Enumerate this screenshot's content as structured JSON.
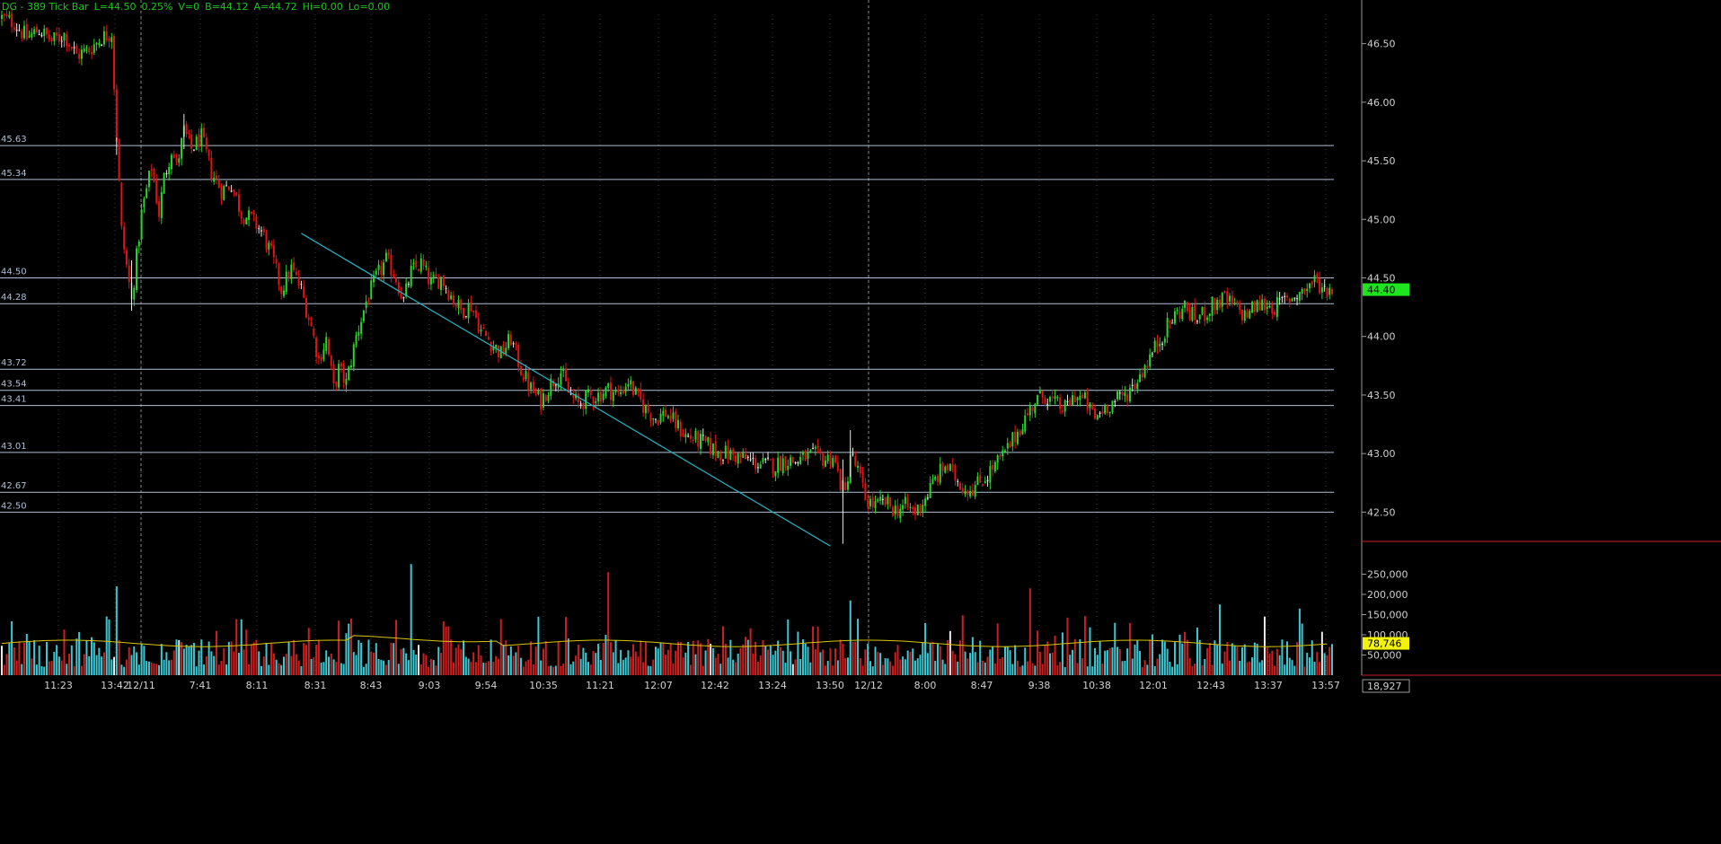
{
  "header": {
    "symbol_title": "DG - 389 Tick Bar",
    "last": "L=44.50",
    "change_pct": "0.25%",
    "volume": "V=0",
    "bid": "B=44.12",
    "ask": "A=44.72",
    "high": "Hi=0.00",
    "low": "Lo=0.00"
  },
  "colors": {
    "background": "#000000",
    "up_bar": "#2bd42b",
    "down_bar": "#e01414",
    "neutral_bar": "#e8e8e8",
    "level_line": "#aebfd6",
    "trend_line": "#1fb7c6",
    "volume_up": "#3cc8d2",
    "volume_down": "#cc1f1f",
    "volume_avg_line": "#d9c600",
    "grid": "#3a3a3a",
    "axis_text": "#d0d0d0",
    "price_marker": "#1ee61e",
    "volume_marker": "#f2f20a"
  },
  "chart_data": [
    {
      "type": "candlestick",
      "panel": "price",
      "title": "",
      "ylim": [
        42.25,
        46.75
      ],
      "y_ticks": [
        "46.50",
        "46.00",
        "45.50",
        "45.00",
        "44.50",
        "44.00",
        "43.50",
        "43.00",
        "42.50"
      ],
      "x_tick_labels": [
        "11:23",
        "13:42",
        "12/11",
        "7:41",
        "8:11",
        "8:31",
        "8:43",
        "9:03",
        "9:54",
        "10:35",
        "11:21",
        "12:07",
        "12:42",
        "13:24",
        "13:50",
        "12/12",
        "8:00",
        "8:47",
        "9:38",
        "10:38",
        "12:01",
        "12:43",
        "13:37",
        "13:57"
      ],
      "session_breaks": [
        "12/11",
        "12/12"
      ],
      "current_price_label": "44.40",
      "horizontal_levels": [
        {
          "label": "45.63",
          "value": 45.63
        },
        {
          "label": "45.34",
          "value": 45.34
        },
        {
          "label": "44.50",
          "value": 44.5
        },
        {
          "label": "44.28",
          "value": 44.28
        },
        {
          "label": "43.72",
          "value": 43.72
        },
        {
          "label": "43.54",
          "value": 43.54
        },
        {
          "label": "43.41",
          "value": 43.41
        },
        {
          "label": "43.01",
          "value": 43.01
        },
        {
          "label": "42.67",
          "value": 42.67
        },
        {
          "label": "42.50",
          "value": 42.5
        }
      ],
      "trend_line": {
        "from": {
          "bar_index": 120,
          "price": 44.88
        },
        "to": {
          "bar_index": 332,
          "price": 42.21
        }
      },
      "price_path": [
        [
          0,
          46.72
        ],
        [
          5,
          46.68
        ],
        [
          10,
          46.55
        ],
        [
          15,
          46.62
        ],
        [
          20,
          46.52
        ],
        [
          25,
          46.58
        ],
        [
          30,
          46.4
        ],
        [
          35,
          46.45
        ],
        [
          40,
          46.55
        ],
        [
          44,
          46.6
        ],
        [
          46,
          45.7
        ],
        [
          48,
          44.9
        ],
        [
          50,
          44.6
        ],
        [
          52,
          44.3
        ],
        [
          56,
          45.05
        ],
        [
          60,
          45.45
        ],
        [
          63,
          45.05
        ],
        [
          65,
          45.35
        ],
        [
          68,
          45.6
        ],
        [
          70,
          45.45
        ],
        [
          73,
          45.75
        ],
        [
          76,
          45.6
        ],
        [
          80,
          45.7
        ],
        [
          84,
          45.4
        ],
        [
          88,
          45.25
        ],
        [
          92,
          45.3
        ],
        [
          96,
          45.05
        ],
        [
          100,
          45.0
        ],
        [
          104,
          44.9
        ],
        [
          108,
          44.7
        ],
        [
          112,
          44.4
        ],
        [
          116,
          44.58
        ],
        [
          120,
          44.4
        ],
        [
          124,
          44.08
        ],
        [
          127,
          43.8
        ],
        [
          130,
          43.98
        ],
        [
          133,
          43.55
        ],
        [
          135,
          43.72
        ],
        [
          138,
          43.6
        ],
        [
          142,
          44.0
        ],
        [
          146,
          44.3
        ],
        [
          150,
          44.5
        ],
        [
          154,
          44.65
        ],
        [
          158,
          44.5
        ],
        [
          161,
          44.3
        ],
        [
          164,
          44.55
        ],
        [
          168,
          44.62
        ],
        [
          172,
          44.45
        ],
        [
          176,
          44.5
        ],
        [
          180,
          44.35
        ],
        [
          184,
          44.22
        ],
        [
          188,
          44.27
        ],
        [
          192,
          44.05
        ],
        [
          196,
          43.95
        ],
        [
          200,
          43.85
        ],
        [
          204,
          43.98
        ],
        [
          208,
          43.72
        ],
        [
          212,
          43.55
        ],
        [
          216,
          43.45
        ],
        [
          220,
          43.6
        ],
        [
          224,
          43.7
        ],
        [
          227,
          43.52
        ],
        [
          231,
          43.42
        ],
        [
          235,
          43.48
        ],
        [
          239,
          43.5
        ],
        [
          243,
          43.55
        ],
        [
          247,
          43.5
        ],
        [
          251,
          43.62
        ],
        [
          254,
          43.5
        ],
        [
          258,
          43.38
        ],
        [
          262,
          43.3
        ],
        [
          266,
          43.35
        ],
        [
          270,
          43.25
        ],
        [
          274,
          43.15
        ],
        [
          278,
          43.12
        ],
        [
          282,
          43.08
        ],
        [
          286,
          43.02
        ],
        [
          290,
          43.0
        ],
        [
          294,
          42.98
        ],
        [
          298,
          42.95
        ],
        [
          302,
          42.92
        ],
        [
          306,
          42.9
        ],
        [
          310,
          42.9
        ],
        [
          314,
          42.95
        ],
        [
          318,
          42.93
        ],
        [
          322,
          42.97
        ],
        [
          326,
          42.98
        ],
        [
          330,
          42.95
        ],
        [
          333,
          42.98
        ],
        [
          336,
          42.75
        ],
        [
          338,
          42.65
        ],
        [
          340,
          43.0
        ],
        [
          343,
          42.85
        ],
        [
          346,
          42.62
        ],
        [
          350,
          42.55
        ],
        [
          354,
          42.58
        ],
        [
          358,
          42.52
        ],
        [
          362,
          42.55
        ],
        [
          366,
          42.5
        ],
        [
          370,
          42.62
        ],
        [
          374,
          42.78
        ],
        [
          378,
          42.9
        ],
        [
          382,
          42.8
        ],
        [
          386,
          42.7
        ],
        [
          390,
          42.72
        ],
        [
          394,
          42.8
        ],
        [
          398,
          42.9
        ],
        [
          402,
          43.0
        ],
        [
          406,
          43.15
        ],
        [
          410,
          43.3
        ],
        [
          414,
          43.45
        ],
        [
          418,
          43.5
        ],
        [
          422,
          43.42
        ],
        [
          426,
          43.38
        ],
        [
          430,
          43.5
        ],
        [
          434,
          43.45
        ],
        [
          438,
          43.3
        ],
        [
          442,
          43.4
        ],
        [
          446,
          43.45
        ],
        [
          450,
          43.5
        ],
        [
          454,
          43.6
        ],
        [
          458,
          43.75
        ],
        [
          462,
          43.9
        ],
        [
          466,
          44.05
        ],
        [
          470,
          44.18
        ],
        [
          474,
          44.25
        ],
        [
          478,
          44.15
        ],
        [
          482,
          44.2
        ],
        [
          486,
          44.28
        ],
        [
          490,
          44.32
        ],
        [
          494,
          44.25
        ],
        [
          498,
          44.18
        ],
        [
          502,
          44.25
        ],
        [
          506,
          44.28
        ],
        [
          510,
          44.25
        ],
        [
          514,
          44.3
        ],
        [
          518,
          44.35
        ],
        [
          522,
          44.4
        ],
        [
          526,
          44.48
        ],
        [
          530,
          44.4
        ],
        [
          533,
          44.42
        ]
      ]
    },
    {
      "type": "bar",
      "panel": "volume",
      "title": "",
      "ylim": [
        0,
        300000
      ],
      "y_ticks": [
        "250,000",
        "200,000",
        "150,000",
        "100,000",
        "50,000"
      ],
      "volume_average_label": "78,746",
      "last_volume_label": "18,927",
      "average_level": 78746,
      "notable_spikes": [
        {
          "bar_index": 46,
          "value": 220000
        },
        {
          "bar_index": 140,
          "value": 140000
        },
        {
          "bar_index": 164,
          "value": 275000
        },
        {
          "bar_index": 243,
          "value": 255000
        },
        {
          "bar_index": 340,
          "value": 185000
        },
        {
          "bar_index": 412,
          "value": 215000
        },
        {
          "bar_index": 488,
          "value": 175000
        },
        {
          "bar_index": 520,
          "value": 165000
        }
      ]
    }
  ]
}
